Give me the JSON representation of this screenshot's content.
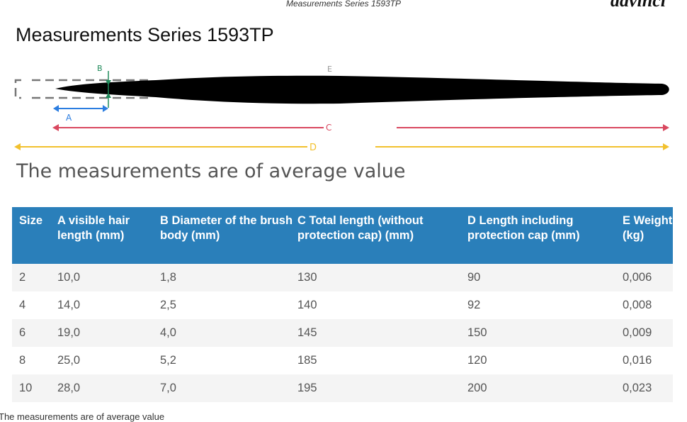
{
  "header": {
    "caption": "Measurements Series 1593TP",
    "logo": "davinci"
  },
  "title": "Measurements Series 1593TP",
  "diagram": {
    "labels": {
      "a": "A",
      "b": "B",
      "c": "C",
      "d": "D",
      "e": "E"
    },
    "colors": {
      "a": "#2b7de0",
      "b": "#1f8a5a",
      "c": "#d9485f",
      "d": "#f2c12e",
      "brush": "#000000"
    }
  },
  "subtitle": "The measurements are of average value",
  "table": {
    "header_color": "#2a7fba",
    "columns": [
      "Size",
      "A visible hair length (mm)",
      "B Diameter of the brush body (mm)",
      "C Total length (without protection cap) (mm)",
      "D Length including protection cap (mm)",
      "E Weight (kg)"
    ],
    "rows": [
      [
        "2",
        "10,0",
        "1,8",
        "130",
        "90",
        "0,006"
      ],
      [
        "4",
        "14,0",
        "2,5",
        "140",
        "92",
        "0,008"
      ],
      [
        "6",
        "19,0",
        "4,0",
        "145",
        "150",
        "0,009"
      ],
      [
        "8",
        "25,0",
        "5,2",
        "185",
        "120",
        "0,016"
      ],
      [
        "10",
        "28,0",
        "7,0",
        "195",
        "200",
        "0,023"
      ]
    ]
  },
  "footnote": "The measurements are of average value"
}
